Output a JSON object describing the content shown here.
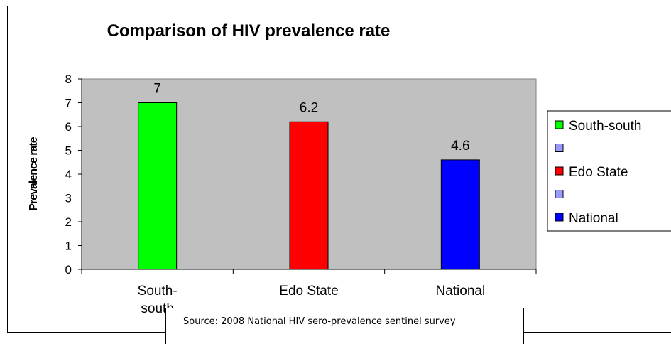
{
  "chart_data": {
    "type": "bar",
    "title": "Comparison of HIV prevalence rate",
    "ylabel": "Prevalence rate",
    "xlabel": "",
    "ylim": [
      0,
      8
    ],
    "yticks": [
      0,
      1,
      2,
      3,
      4,
      5,
      6,
      7,
      8
    ],
    "categories": [
      "South-south",
      "Edo State",
      "National"
    ],
    "category_labels": [
      [
        "South-",
        "south"
      ],
      [
        "Edo State"
      ],
      [
        "National"
      ]
    ],
    "values": [
      7,
      6.2,
      4.6
    ],
    "data_labels": [
      "7",
      "6.2",
      "4.6"
    ],
    "colors": [
      "#00ff00",
      "#ff0000",
      "#0000ff"
    ],
    "plot_background": "#c0c0c0",
    "grid": false,
    "legend": {
      "placement": "right",
      "entries": [
        {
          "label": "South-south",
          "color": "#00ff00"
        },
        {
          "label": "",
          "color": "#9999ff"
        },
        {
          "label": "Edo State",
          "color": "#ff0000"
        },
        {
          "label": "",
          "color": "#9999ff"
        },
        {
          "label": "National",
          "color": "#0000ff"
        }
      ]
    }
  },
  "source_note": "Source: 2008 National HIV sero-prevalence sentinel survey"
}
